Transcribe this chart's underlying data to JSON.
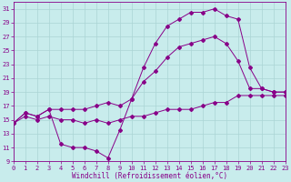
{
  "xlabel": "Windchill (Refroidissement éolien,°C)",
  "bg_color": "#c8ecec",
  "grid_color": "#aad4d4",
  "line_color": "#880088",
  "ylim": [
    9,
    32
  ],
  "xlim": [
    0,
    23
  ],
  "yticks": [
    9,
    11,
    13,
    15,
    17,
    19,
    21,
    23,
    25,
    27,
    29,
    31
  ],
  "xticks": [
    0,
    1,
    2,
    3,
    4,
    5,
    6,
    7,
    8,
    9,
    10,
    11,
    12,
    13,
    14,
    15,
    16,
    17,
    18,
    19,
    20,
    21,
    22,
    23
  ],
  "line1_x": [
    0,
    1,
    2,
    3,
    4,
    5,
    6,
    7,
    8,
    9,
    10,
    11,
    12,
    13,
    14,
    15,
    16,
    17,
    18,
    19,
    20,
    21,
    22,
    23
  ],
  "line1_y": [
    14.5,
    16.0,
    15.5,
    16.5,
    11.5,
    11.0,
    11.0,
    10.5,
    9.5,
    13.5,
    18.0,
    22.5,
    26.0,
    28.5,
    29.5,
    30.5,
    30.5,
    31.0,
    30.0,
    29.5,
    22.5,
    19.5,
    19.0,
    19.0
  ],
  "line2_x": [
    0,
    1,
    2,
    3,
    4,
    5,
    6,
    7,
    8,
    9,
    10,
    11,
    12,
    13,
    14,
    15,
    16,
    17,
    18,
    19,
    20,
    21,
    22,
    23
  ],
  "line2_y": [
    14.5,
    16.0,
    15.5,
    16.5,
    16.5,
    16.5,
    16.5,
    17.0,
    17.5,
    17.0,
    18.0,
    20.5,
    22.0,
    24.0,
    25.5,
    26.0,
    26.5,
    27.0,
    26.0,
    23.5,
    19.5,
    19.5,
    19.0,
    19.0
  ],
  "line3_x": [
    0,
    1,
    2,
    3,
    4,
    5,
    6,
    7,
    8,
    9,
    10,
    11,
    12,
    13,
    14,
    15,
    16,
    17,
    18,
    19,
    20,
    21,
    22,
    23
  ],
  "line3_y": [
    14.5,
    15.5,
    15.0,
    15.5,
    15.0,
    15.0,
    14.5,
    15.0,
    14.5,
    15.0,
    15.5,
    15.5,
    16.0,
    16.5,
    16.5,
    16.5,
    17.0,
    17.5,
    17.5,
    18.5,
    18.5,
    18.5,
    18.5,
    18.5
  ],
  "tick_fontsize": 5,
  "xlabel_fontsize": 5.5
}
